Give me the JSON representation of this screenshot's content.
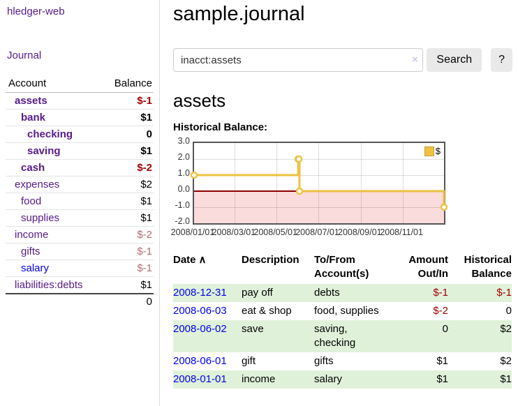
{
  "sidebar": {
    "brand": "hledger-web",
    "nav": {
      "journal": "Journal"
    },
    "accounts_table": {
      "headers": {
        "account": "Account",
        "balance": "Balance"
      },
      "rows": [
        {
          "name": "assets",
          "indent": 1,
          "bold": true,
          "balance": "$-1",
          "balance_class": "neg"
        },
        {
          "name": "bank",
          "indent": 2,
          "bold": true,
          "balance": "$1",
          "balance_class": "pos"
        },
        {
          "name": "checking",
          "indent": 3,
          "bold": true,
          "balance": "0",
          "balance_class": "pos"
        },
        {
          "name": "saving",
          "indent": 3,
          "bold": true,
          "balance": "$1",
          "balance_class": "pos"
        },
        {
          "name": "cash",
          "indent": 2,
          "bold": true,
          "balance": "$-2",
          "balance_class": "neg"
        },
        {
          "name": "expenses",
          "indent": 1,
          "bold": false,
          "balance": "$2",
          "balance_class": "pos"
        },
        {
          "name": "food",
          "indent": 2,
          "bold": false,
          "balance": "$1",
          "balance_class": "pos"
        },
        {
          "name": "supplies",
          "indent": 2,
          "bold": false,
          "balance": "$1",
          "balance_class": "pos"
        },
        {
          "name": "income",
          "indent": 1,
          "bold": false,
          "balance": "$-2",
          "balance_class": "negfade"
        },
        {
          "name": "gifts",
          "indent": 2,
          "bold": false,
          "balance": "$-1",
          "balance_class": "negfade"
        },
        {
          "name": "salary",
          "indent": 2,
          "bold": false,
          "balance": "$-1",
          "balance_class": "negfade",
          "blue": true
        },
        {
          "name": "liabilities:debts",
          "indent": 1,
          "bold": false,
          "balance": "$1",
          "balance_class": "pos"
        }
      ],
      "total": "0"
    }
  },
  "header": {
    "title": "sample.journal"
  },
  "search": {
    "query": "inacct:assets",
    "clear_icon": "×",
    "search_label": "Search",
    "help_label": "?"
  },
  "account_page": {
    "heading": "assets",
    "chart_label": "Historical Balance:"
  },
  "chart_data": {
    "type": "line",
    "style": "step",
    "x_range": [
      "2008-01-01",
      "2008-12-31"
    ],
    "ylim": [
      -2,
      3
    ],
    "y_ticks": [
      "3.0",
      "2.0",
      "1.0",
      "0.0",
      "-1.0",
      "-2.0"
    ],
    "x_ticks": [
      "2008/01/01",
      "2008/03/01",
      "2008/05/01",
      "2008/07/01",
      "2008/09/01",
      "2008/11/01"
    ],
    "grid": true,
    "legend_position": "top-right",
    "series": [
      {
        "name": "$",
        "color": "#edc240",
        "points": [
          {
            "x": "2008-01-01",
            "y": 1
          },
          {
            "x": "2008-06-01",
            "y": 2
          },
          {
            "x": "2008-06-02",
            "y": 2
          },
          {
            "x": "2008-06-03",
            "y": 0
          },
          {
            "x": "2008-12-31",
            "y": -1
          }
        ]
      }
    ],
    "negative_region_color": "#fbdcdc",
    "zero_line_color": "#8b0000"
  },
  "register_table": {
    "headers": {
      "date": "Date",
      "sort_icon": "∧",
      "description": "Description",
      "tofrom": [
        "To/From",
        "Account(s)"
      ],
      "amount": [
        "Amount",
        "Out/In"
      ],
      "historical": [
        "Historical",
        "Balance"
      ]
    },
    "rows": [
      {
        "date": "2008-12-31",
        "description": "pay off",
        "accounts": [
          "debts"
        ],
        "amount": "$-1",
        "amount_neg": true,
        "balance": "$-1",
        "balance_neg": true
      },
      {
        "date": "2008-06-03",
        "description": "eat & shop",
        "accounts": [
          "food, supplies"
        ],
        "amount": "$-2",
        "amount_neg": true,
        "balance": "0",
        "balance_neg": false
      },
      {
        "date": "2008-06-02",
        "description": "save",
        "accounts": [
          "saving,",
          "checking"
        ],
        "amount": "0",
        "amount_neg": false,
        "balance": "$2",
        "balance_neg": false
      },
      {
        "date": "2008-06-01",
        "description": "gift",
        "accounts": [
          "gifts"
        ],
        "amount": "$1",
        "amount_neg": false,
        "balance": "$2",
        "balance_neg": false
      },
      {
        "date": "2008-01-01",
        "description": "income",
        "accounts": [
          "salary"
        ],
        "amount": "$1",
        "amount_neg": false,
        "balance": "$1",
        "balance_neg": false
      }
    ]
  },
  "colors": {
    "link_purple": "#551a8b",
    "link_blue": "#0000ee",
    "negative_strong": "#a40000",
    "negative_faded": "#b66a73",
    "row_green": "#e0f1da",
    "series_gold": "#edc240",
    "negative_region": "#fbdcdc",
    "zero_line": "#8b0000"
  }
}
